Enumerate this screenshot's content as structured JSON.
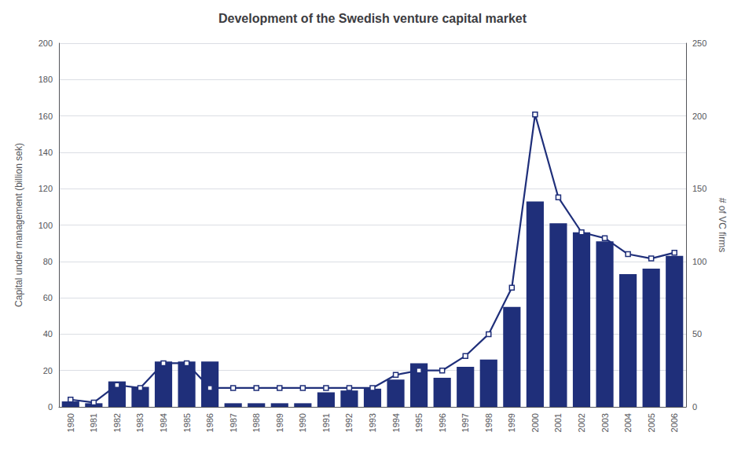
{
  "chart_data": {
    "type": "bar",
    "title": "Development of the Swedish venture capital market",
    "ylabel": "Capital under management (billion sek)",
    "y2label": "# of VC firms",
    "categories": [
      1980,
      1981,
      1982,
      1983,
      1984,
      1985,
      1986,
      1987,
      1988,
      1989,
      1990,
      1991,
      1992,
      1993,
      1994,
      1995,
      1996,
      1997,
      1998,
      1999,
      2000,
      2001,
      2002,
      2003,
      2004,
      2005,
      2006
    ],
    "series": [
      {
        "type": "bar",
        "color": "#1F2F7A",
        "values": [
          3,
          2,
          14,
          11,
          25,
          25,
          25,
          2,
          2,
          2,
          2,
          8,
          9,
          10,
          15,
          24,
          16,
          22,
          26,
          55,
          113,
          101,
          96,
          91,
          73,
          76,
          83
        ]
      },
      {
        "type": "line",
        "axis": "y2",
        "color": "#1F2F7A",
        "marker": "square",
        "values": [
          5,
          3,
          15,
          13,
          30,
          30,
          13,
          13,
          13,
          13,
          13,
          13,
          13,
          13,
          22,
          25,
          25,
          35,
          50,
          82,
          201,
          144,
          120,
          116,
          105,
          102,
          106
        ]
      }
    ],
    "ylim": [
      0,
      200
    ],
    "yticks": [
      0,
      20,
      40,
      60,
      80,
      100,
      120,
      140,
      160,
      180,
      200
    ],
    "y2lim": [
      0,
      250
    ],
    "y2ticks": [
      0,
      50,
      100,
      150,
      200,
      250
    ],
    "grid": true
  }
}
